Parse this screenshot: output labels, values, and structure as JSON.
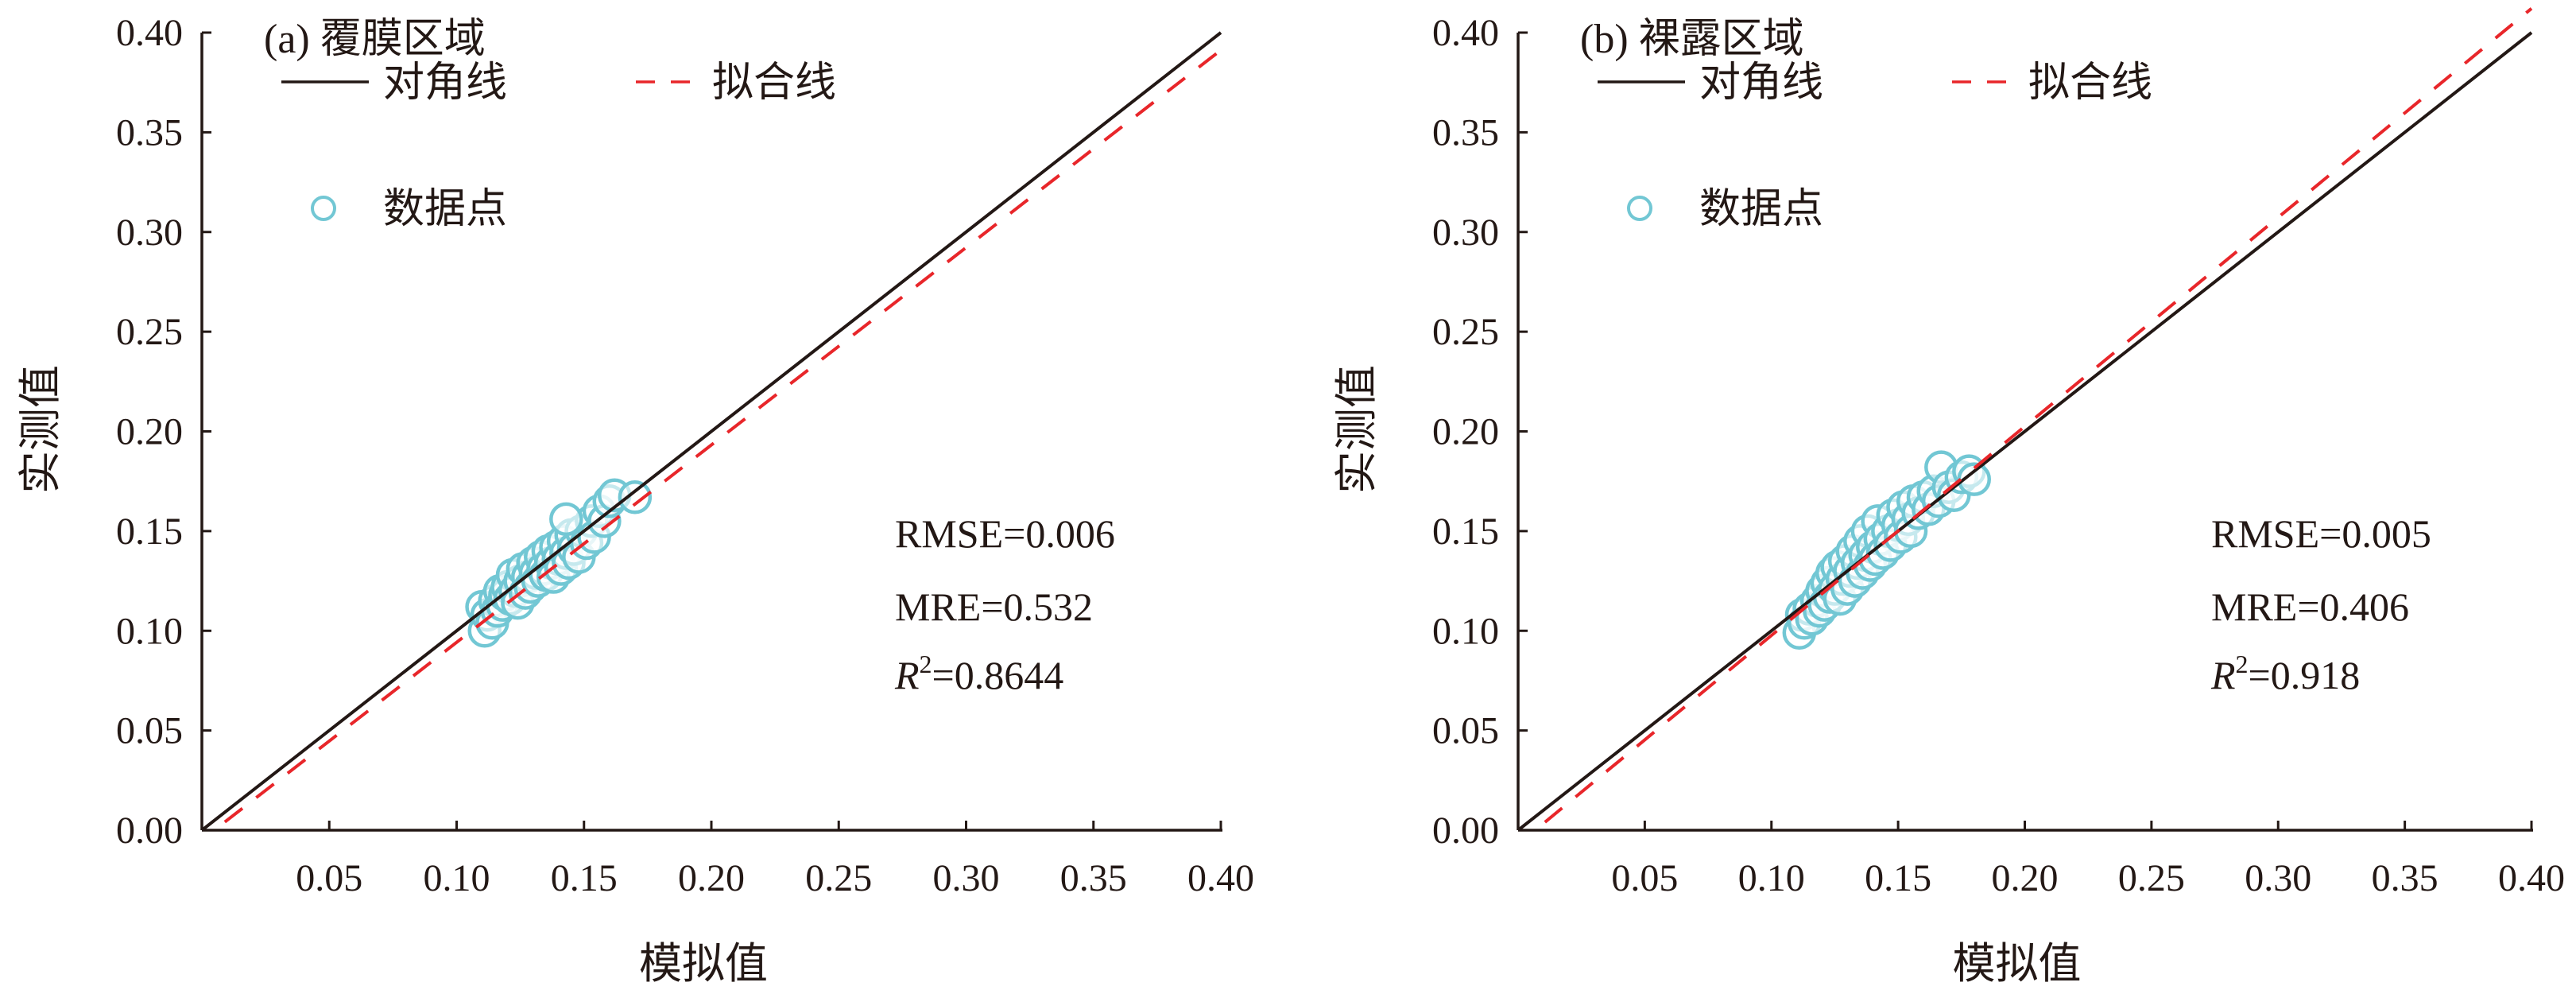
{
  "chart_data": [
    {
      "type": "scatter",
      "title": "(a) 覆膜区域",
      "xlabel": "模拟值",
      "ylabel": "实测值",
      "xlim": [
        0,
        0.4
      ],
      "ylim": [
        0,
        0.4
      ],
      "xticks": [
        "0.05",
        "0.10",
        "0.15",
        "0.20",
        "0.25",
        "0.30",
        "0.35",
        "0.40"
      ],
      "yticks": [
        "0.00",
        "0.05",
        "0.10",
        "0.15",
        "0.20",
        "0.25",
        "0.30",
        "0.35",
        "0.40"
      ],
      "grid": false,
      "legend": {
        "placement": "top-left",
        "diagonal": "对角线",
        "fit": "拟合线",
        "points": "数据点"
      },
      "fit_line": {
        "slope": 0.99,
        "intercept": -0.0048,
        "x_range": [
          0.009,
          0.4
        ]
      },
      "stats": {
        "rmse": "RMSE=0.006",
        "mre": "MRE=0.532",
        "r2_symbol": "R",
        "r2_exp": "2",
        "r2_value": "=0.8644"
      },
      "points": [
        [
          0.11,
          0.112
        ],
        [
          0.111,
          0.1
        ],
        [
          0.112,
          0.108
        ],
        [
          0.114,
          0.104
        ],
        [
          0.115,
          0.115
        ],
        [
          0.116,
          0.11
        ],
        [
          0.117,
          0.12
        ],
        [
          0.118,
          0.113
        ],
        [
          0.119,
          0.118
        ],
        [
          0.12,
          0.122
        ],
        [
          0.121,
          0.116
        ],
        [
          0.122,
          0.128
        ],
        [
          0.123,
          0.12
        ],
        [
          0.124,
          0.114
        ],
        [
          0.125,
          0.125
        ],
        [
          0.126,
          0.131
        ],
        [
          0.127,
          0.119
        ],
        [
          0.128,
          0.127
        ],
        [
          0.129,
          0.122
        ],
        [
          0.13,
          0.134
        ],
        [
          0.131,
          0.129
        ],
        [
          0.132,
          0.125
        ],
        [
          0.133,
          0.137
        ],
        [
          0.134,
          0.131
        ],
        [
          0.135,
          0.128
        ],
        [
          0.136,
          0.14
        ],
        [
          0.137,
          0.134
        ],
        [
          0.138,
          0.127
        ],
        [
          0.139,
          0.142
        ],
        [
          0.14,
          0.136
        ],
        [
          0.141,
          0.131
        ],
        [
          0.142,
          0.145
        ],
        [
          0.143,
          0.139
        ],
        [
          0.144,
          0.134
        ],
        [
          0.145,
          0.148
        ],
        [
          0.146,
          0.141
        ],
        [
          0.148,
          0.137
        ],
        [
          0.149,
          0.15
        ],
        [
          0.151,
          0.144
        ],
        [
          0.153,
          0.155
        ],
        [
          0.154,
          0.147
        ],
        [
          0.156,
          0.16
        ],
        [
          0.158,
          0.155
        ],
        [
          0.16,
          0.165
        ],
        [
          0.162,
          0.168
        ],
        [
          0.17,
          0.167
        ],
        [
          0.143,
          0.156
        ]
      ]
    },
    {
      "type": "scatter",
      "title": "(b) 裸露区域",
      "xlabel": "模拟值",
      "ylabel": "实测值",
      "xlim": [
        0,
        0.4
      ],
      "ylim": [
        0,
        0.4
      ],
      "xticks": [
        "0.05",
        "0.10",
        "0.15",
        "0.20",
        "0.25",
        "0.30",
        "0.35",
        "0.40"
      ],
      "yticks": [
        "0.00",
        "0.05",
        "0.10",
        "0.15",
        "0.20",
        "0.25",
        "0.30",
        "0.35",
        "0.40"
      ],
      "grid": false,
      "legend": {
        "placement": "top-left",
        "diagonal": "对角线",
        "fit": "拟合线",
        "points": "数据点"
      },
      "fit_line": {
        "slope": 1.048,
        "intercept": -0.0071,
        "x_range": [
          0.0106,
          0.4
        ]
      },
      "stats": {
        "rmse": "RMSE=0.005",
        "mre": "MRE=0.406",
        "r2_symbol": "R",
        "r2_exp": "2",
        "r2_value": "=0.918"
      },
      "points": [
        [
          0.111,
          0.099
        ],
        [
          0.112,
          0.108
        ],
        [
          0.113,
          0.104
        ],
        [
          0.115,
          0.111
        ],
        [
          0.116,
          0.106
        ],
        [
          0.118,
          0.115
        ],
        [
          0.119,
          0.11
        ],
        [
          0.12,
          0.12
        ],
        [
          0.121,
          0.113
        ],
        [
          0.122,
          0.124
        ],
        [
          0.123,
          0.117
        ],
        [
          0.124,
          0.129
        ],
        [
          0.125,
          0.121
        ],
        [
          0.126,
          0.132
        ],
        [
          0.127,
          0.116
        ],
        [
          0.128,
          0.126
        ],
        [
          0.129,
          0.135
        ],
        [
          0.13,
          0.121
        ],
        [
          0.131,
          0.13
        ],
        [
          0.132,
          0.14
        ],
        [
          0.133,
          0.125
        ],
        [
          0.134,
          0.134
        ],
        [
          0.135,
          0.145
        ],
        [
          0.136,
          0.129
        ],
        [
          0.137,
          0.138
        ],
        [
          0.138,
          0.15
        ],
        [
          0.139,
          0.133
        ],
        [
          0.14,
          0.142
        ],
        [
          0.141,
          0.136
        ],
        [
          0.142,
          0.155
        ],
        [
          0.143,
          0.146
        ],
        [
          0.144,
          0.139
        ],
        [
          0.146,
          0.15
        ],
        [
          0.147,
          0.143
        ],
        [
          0.148,
          0.158
        ],
        [
          0.15,
          0.153
        ],
        [
          0.151,
          0.147
        ],
        [
          0.152,
          0.162
        ],
        [
          0.154,
          0.156
        ],
        [
          0.155,
          0.15
        ],
        [
          0.156,
          0.165
        ],
        [
          0.158,
          0.159
        ],
        [
          0.16,
          0.167
        ],
        [
          0.162,
          0.161
        ],
        [
          0.164,
          0.17
        ],
        [
          0.166,
          0.165
        ],
        [
          0.167,
          0.182
        ],
        [
          0.17,
          0.172
        ],
        [
          0.172,
          0.168
        ],
        [
          0.175,
          0.177
        ],
        [
          0.178,
          0.18
        ],
        [
          0.18,
          0.176
        ]
      ]
    }
  ],
  "colors": {
    "axis": "#231815",
    "fit": "#e8262a",
    "points": "#72c7d4"
  }
}
